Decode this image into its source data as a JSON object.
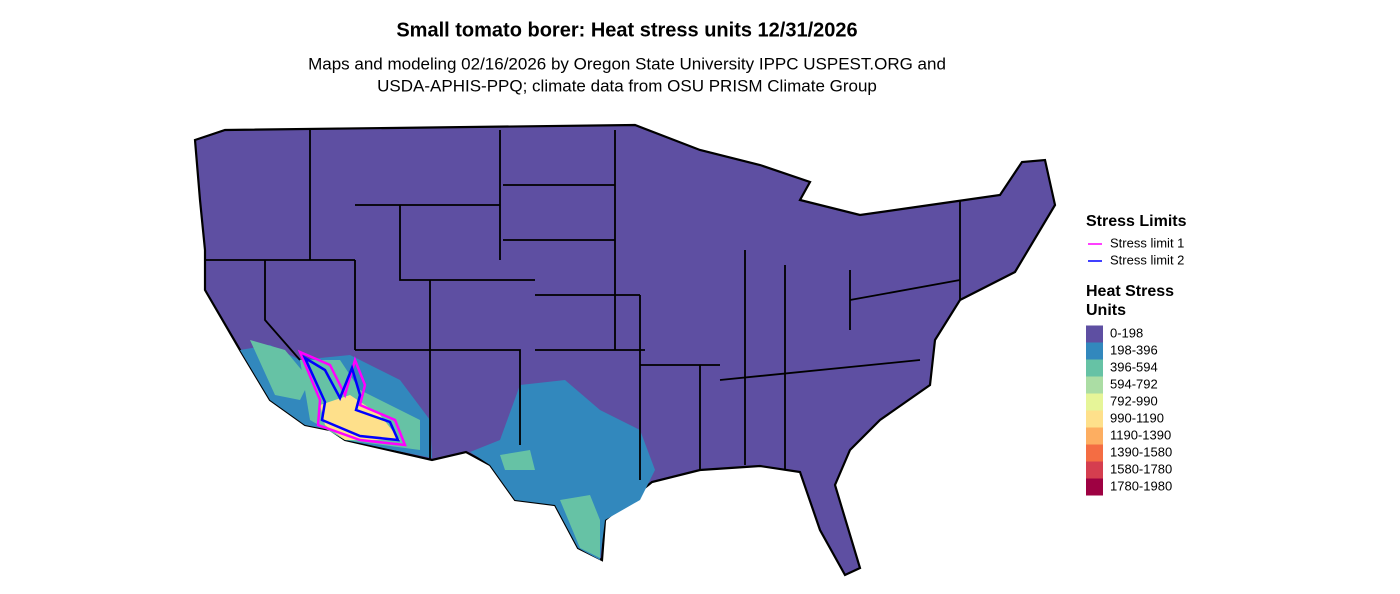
{
  "title": "Small tomato borer: Heat stress units 12/31/2026",
  "subtitle_lines": [
    "Maps and modeling 02/16/2026 by Oregon State University IPPC USPEST.ORG and",
    "USDA-APHIS-PPQ; climate data from OSU PRISM Climate Group"
  ],
  "legend": {
    "stress_limits": {
      "title": "Stress Limits",
      "items": [
        {
          "label": "Stress limit 1",
          "color": "#ff00ff"
        },
        {
          "label": "Stress limit 2",
          "color": "#0000ff"
        }
      ]
    },
    "heat_units": {
      "title_lines": [
        "Heat Stress",
        "Units"
      ],
      "items": [
        {
          "label": "0-198",
          "color": "#5e4fa2"
        },
        {
          "label": "198-396",
          "color": "#3288bd"
        },
        {
          "label": "396-594",
          "color": "#66c2a5"
        },
        {
          "label": "594-792",
          "color": "#abdda4"
        },
        {
          "label": "792-990",
          "color": "#e6f598"
        },
        {
          "label": "990-1190",
          "color": "#fee08b"
        },
        {
          "label": "1190-1390",
          "color": "#fdae61"
        },
        {
          "label": "1390-1580",
          "color": "#f46d43"
        },
        {
          "label": "1580-1780",
          "color": "#d53e4f"
        },
        {
          "label": "1780-1980",
          "color": "#9e0142"
        }
      ]
    }
  }
}
